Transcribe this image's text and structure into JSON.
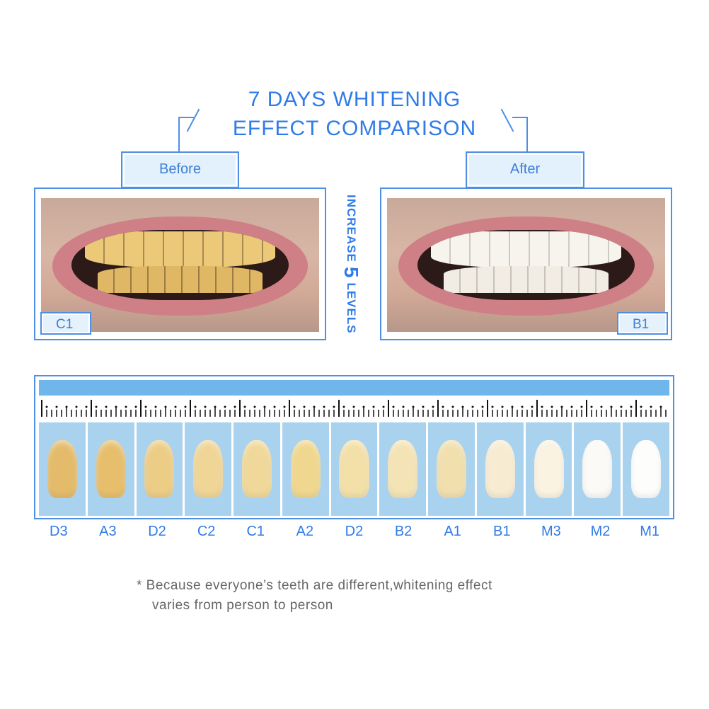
{
  "title": {
    "line1": "7 DAYS WHITENING",
    "line2": "EFFECT COMPARISON"
  },
  "before": {
    "label": "Before",
    "shade": "C1",
    "tooth_color": "#ecc978"
  },
  "after": {
    "label": "After",
    "shade": "B1",
    "tooth_color": "#f7f4ee"
  },
  "increase": {
    "prefix": "INCREASE",
    "number": "5",
    "suffix": "LEVELS"
  },
  "shade_guide": [
    {
      "label": "D3",
      "color": "#e3bb6a"
    },
    {
      "label": "A3",
      "color": "#e6be6c"
    },
    {
      "label": "D2",
      "color": "#eccd86"
    },
    {
      "label": "C2",
      "color": "#efd596"
    },
    {
      "label": "C1",
      "color": "#f0d89a"
    },
    {
      "label": "A2",
      "color": "#f0d78f"
    },
    {
      "label": "D2",
      "color": "#f3e0a8"
    },
    {
      "label": "B2",
      "color": "#f4e3b4"
    },
    {
      "label": "A1",
      "color": "#f1dfae"
    },
    {
      "label": "B1",
      "color": "#f7ecd2"
    },
    {
      "label": "M3",
      "color": "#faf3e2"
    },
    {
      "label": "M2",
      "color": "#fbfaf6"
    },
    {
      "label": "M1",
      "color": "#fdfdfb"
    }
  ],
  "footnote": {
    "line1": "* Because everyone’s teeth are different,whitening effect",
    "line2": "varies from person to person"
  },
  "colors": {
    "accent": "#2f7be8",
    "border": "#4f8fe6",
    "tile": "#a9d2ef",
    "bar": "#6fb6ea"
  }
}
